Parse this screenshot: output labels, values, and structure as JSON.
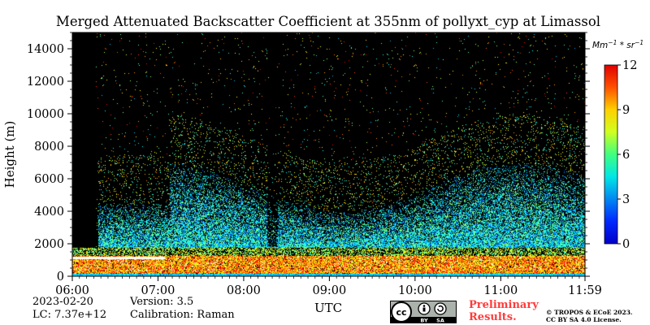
{
  "chart_data": {
    "type": "heatmap",
    "title": "Merged Attenuated Backscatter Coefficient at 355nm of pollyxt_cyp at Limassol",
    "xlabel": "UTC",
    "ylabel": "Height (m)",
    "x_ticks": [
      "06:00",
      "07:00",
      "08:00",
      "09:00",
      "10:00",
      "11:00",
      "11:59"
    ],
    "x_range": [
      "06:00",
      "11:59"
    ],
    "y_ticks": [
      0,
      2000,
      4000,
      6000,
      8000,
      10000,
      12000,
      14000
    ],
    "y_range": [
      0,
      15000
    ],
    "colorbar": {
      "label": "Mm^-1*sr^-1",
      "ticks": [
        0,
        3,
        6,
        9,
        12
      ],
      "range": [
        0,
        12
      ],
      "colormap": "jet"
    },
    "background_color": "#000000"
  },
  "footer": {
    "date": "2023-02-20",
    "lc": "LC: 7.37e+12",
    "version": "Version: 3.5",
    "calibration": "Calibration: Raman",
    "preliminary_line1": "Preliminary",
    "preliminary_line2": "Results.",
    "copyright_line1": "© TROPOS & ECoE 2023.",
    "copyright_line2": "CC BY SA 4.0 License.",
    "cc_text": "cc",
    "by_text": "BY",
    "sa_text": "SA"
  }
}
